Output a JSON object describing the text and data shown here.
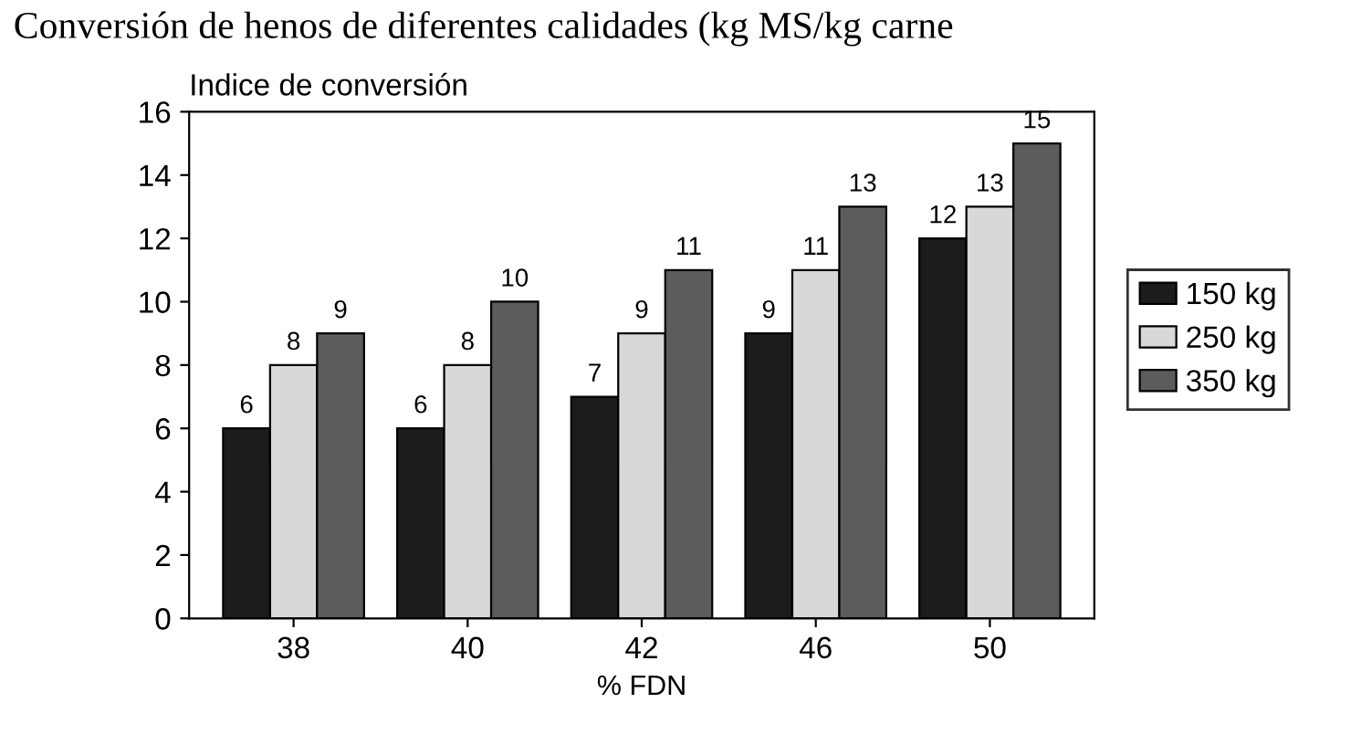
{
  "chart_data": {
    "type": "bar",
    "title": "Conversión de henos de diferentes calidades (kg MS/kg carne",
    "ylabel": "Indice de conversión",
    "xlabel": "% FDN",
    "categories": [
      "38",
      "40",
      "42",
      "46",
      "50"
    ],
    "series": [
      {
        "name": "150 kg",
        "color": "#1c1c1c",
        "values": [
          6,
          6,
          7,
          9,
          12
        ]
      },
      {
        "name": "250 kg",
        "color": "#d8d8d8",
        "values": [
          8,
          8,
          9,
          11,
          13
        ]
      },
      {
        "name": "350 kg",
        "color": "#5c5c5c",
        "values": [
          9,
          10,
          11,
          13,
          15
        ]
      }
    ],
    "ylim": [
      0,
      16
    ],
    "yticks": [
      0,
      2,
      4,
      6,
      8,
      10,
      12,
      14,
      16
    ],
    "data_labels": true,
    "legend": "right",
    "grid": false
  }
}
